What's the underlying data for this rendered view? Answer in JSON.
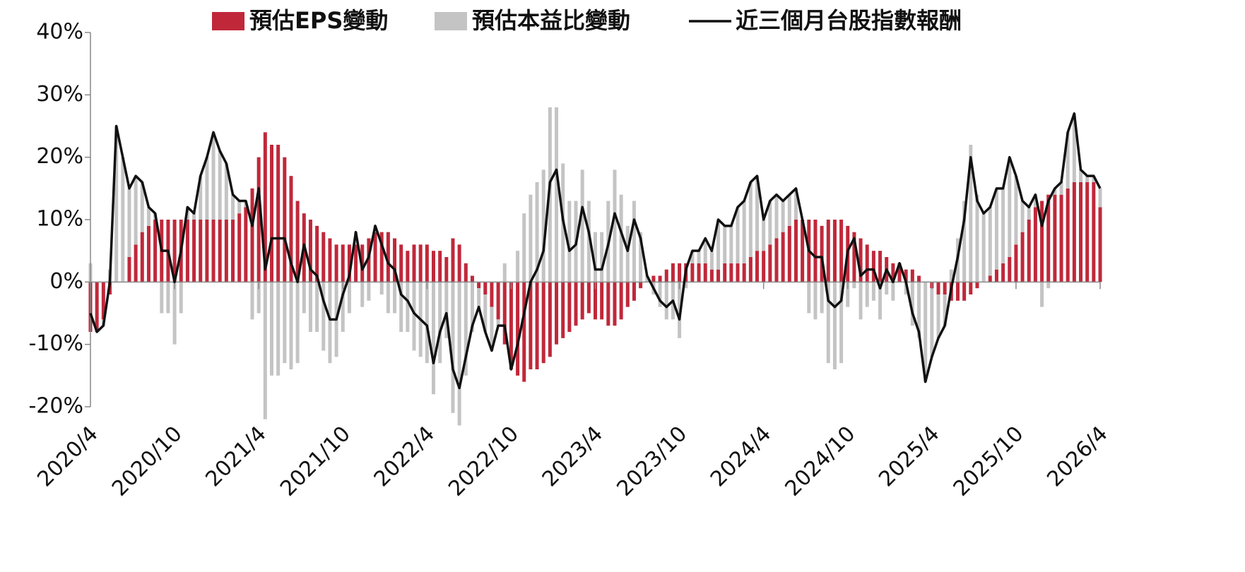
{
  "chart_data": {
    "type": "bar",
    "categories": [
      "2020/4",
      null,
      null,
      null,
      null,
      null,
      null,
      null,
      null,
      null,
      null,
      null,
      null,
      "2020/10",
      null,
      null,
      null,
      null,
      null,
      null,
      null,
      null,
      null,
      null,
      null,
      null,
      "2021/4",
      null,
      null,
      null,
      null,
      null,
      null,
      null,
      null,
      null,
      null,
      null,
      null,
      "2021/10",
      null,
      null,
      null,
      null,
      null,
      null,
      null,
      null,
      null,
      null,
      null,
      null,
      "2022/4",
      null,
      null,
      null,
      null,
      null,
      null,
      null,
      null,
      null,
      null,
      null,
      null,
      "2022/10",
      null,
      null,
      null,
      null,
      null,
      null,
      null,
      null,
      null,
      null,
      null,
      null,
      "2023/4",
      null,
      null,
      null,
      null,
      null,
      null,
      null,
      null,
      null,
      null,
      null,
      null,
      "2023/10",
      null,
      null,
      null,
      null,
      null,
      null,
      null,
      null,
      null,
      null,
      null,
      null,
      "2024/4",
      null,
      null,
      null,
      null,
      null,
      null,
      null,
      null,
      null,
      null,
      null,
      null,
      "2024/10",
      null,
      null,
      null,
      null,
      null,
      null,
      null,
      null,
      null,
      null,
      null,
      null,
      "2025/4",
      null,
      null,
      null,
      null,
      null,
      null,
      null,
      null,
      null,
      null,
      null,
      null,
      "2025/10",
      null,
      null,
      null,
      null,
      null,
      null,
      null,
      null,
      null,
      null,
      null,
      null,
      "2026/4"
    ],
    "series": [
      {
        "name": "預估EPS變動",
        "type": "bar",
        "color": "#c0283a",
        "values": [
          -8,
          -8,
          -6,
          -2,
          0,
          0,
          4,
          6,
          8,
          9,
          10,
          10,
          10,
          10,
          10,
          10,
          10,
          10,
          10,
          10,
          10,
          10,
          10,
          11,
          12,
          15,
          20,
          24,
          22,
          22,
          20,
          17,
          13,
          11,
          10,
          9,
          8,
          7,
          6,
          6,
          6,
          6,
          6,
          7,
          8,
          8,
          8,
          7,
          6,
          5,
          6,
          6,
          6,
          5,
          5,
          4,
          7,
          6,
          3,
          1,
          -1,
          -2,
          -4,
          -6,
          -10,
          -14,
          -15,
          -16,
          -14,
          -14,
          -13,
          -12,
          -10,
          -9,
          -8,
          -7,
          -6,
          -5,
          -6,
          -6,
          -7,
          -7,
          -6,
          -4,
          -3,
          -1,
          0,
          1,
          1,
          2,
          3,
          3,
          3,
          3,
          3,
          3,
          2,
          2,
          3,
          3,
          3,
          3,
          4,
          5,
          5,
          6,
          7,
          8,
          9,
          10,
          10,
          10,
          10,
          9,
          10,
          10,
          10,
          9,
          8,
          7,
          6,
          5,
          5,
          4,
          3,
          3,
          2,
          2,
          1,
          0,
          -1,
          -2,
          -2,
          -3,
          -3,
          -3,
          -2,
          -1,
          0,
          1,
          2,
          3,
          4,
          6,
          8,
          10,
          12,
          13,
          14,
          14,
          14,
          15,
          16,
          16,
          16,
          16,
          12
        ]
      },
      {
        "name": "預估本益比變動",
        "type": "bar",
        "color": "#c4c4c4",
        "values": [
          3,
          0,
          -1,
          2,
          25,
          20,
          11,
          11,
          8,
          3,
          1,
          -5,
          -5,
          -10,
          -5,
          2,
          1,
          7,
          10,
          14,
          11,
          9,
          4,
          2,
          1,
          -6,
          -5,
          -22,
          -15,
          -15,
          -13,
          -14,
          -13,
          -5,
          -8,
          -8,
          -11,
          -13,
          -12,
          -8,
          -5,
          2,
          -4,
          -3,
          1,
          -2,
          -5,
          -5,
          -8,
          -8,
          -11,
          -12,
          -13,
          -18,
          -13,
          -9,
          -21,
          -23,
          -15,
          -8,
          -3,
          -6,
          -7,
          -1,
          3,
          0,
          5,
          11,
          14,
          16,
          18,
          28,
          28,
          19,
          13,
          13,
          18,
          13,
          8,
          8,
          13,
          18,
          14,
          9,
          13,
          8,
          1,
          -2,
          -4,
          -6,
          -6,
          -9,
          -1,
          2,
          2,
          4,
          3,
          8,
          6,
          6,
          9,
          10,
          12,
          12,
          5,
          7,
          7,
          5,
          5,
          5,
          0,
          -5,
          -6,
          -5,
          -13,
          -14,
          -13,
          -4,
          -1,
          -6,
          -4,
          -3,
          -6,
          -2,
          -3,
          0,
          -2,
          -7,
          -9,
          -16,
          -11,
          -7,
          -5,
          2,
          7,
          13,
          22,
          14,
          11,
          11,
          13,
          12,
          16,
          11,
          5,
          2,
          2,
          -4,
          -1,
          1,
          2,
          9,
          11,
          2,
          1,
          1,
          3
        ]
      },
      {
        "name": "近三個月台股指數報酬",
        "type": "line",
        "color": "#111111",
        "values": [
          -5,
          -8,
          -7,
          0,
          25,
          20,
          15,
          17,
          16,
          12,
          11,
          5,
          5,
          0,
          5,
          12,
          11,
          17,
          20,
          24,
          21,
          19,
          14,
          13,
          13,
          9,
          15,
          2,
          7,
          7,
          7,
          3,
          0,
          6,
          2,
          1,
          -3,
          -6,
          -6,
          -2,
          1,
          8,
          2,
          4,
          9,
          6,
          3,
          2,
          -2,
          -3,
          -5,
          -6,
          -7,
          -13,
          -8,
          -5,
          -14,
          -17,
          -12,
          -7,
          -4,
          -8,
          -11,
          -7,
          -7,
          -14,
          -10,
          -5,
          0,
          2,
          5,
          16,
          18,
          10,
          5,
          6,
          12,
          8,
          2,
          2,
          6,
          11,
          8,
          5,
          10,
          7,
          1,
          -1,
          -3,
          -4,
          -3,
          -6,
          2,
          5,
          5,
          7,
          5,
          10,
          9,
          9,
          12,
          13,
          16,
          17,
          10,
          13,
          14,
          13,
          14,
          15,
          10,
          5,
          4,
          4,
          -3,
          -4,
          -3,
          5,
          7,
          1,
          2,
          2,
          -1,
          2,
          0,
          3,
          0,
          -5,
          -8,
          -16,
          -12,
          -9,
          -7,
          -1,
          4,
          10,
          20,
          13,
          11,
          12,
          15,
          15,
          20,
          17,
          13,
          12,
          14,
          9,
          13,
          15,
          16,
          24,
          27,
          18,
          17,
          17,
          15
        ]
      }
    ],
    "ylim": [
      -20,
      40
    ],
    "yticks": [
      {
        "value": -20,
        "label": "-20%"
      },
      {
        "value": -10,
        "label": "-10%"
      },
      {
        "value": 0,
        "label": "0%"
      },
      {
        "value": 10,
        "label": "10%"
      },
      {
        "value": 20,
        "label": "20%"
      },
      {
        "value": 30,
        "label": "30%"
      },
      {
        "value": 40,
        "label": "40%"
      }
    ],
    "stacked": true,
    "grid": false,
    "legend": "top"
  }
}
